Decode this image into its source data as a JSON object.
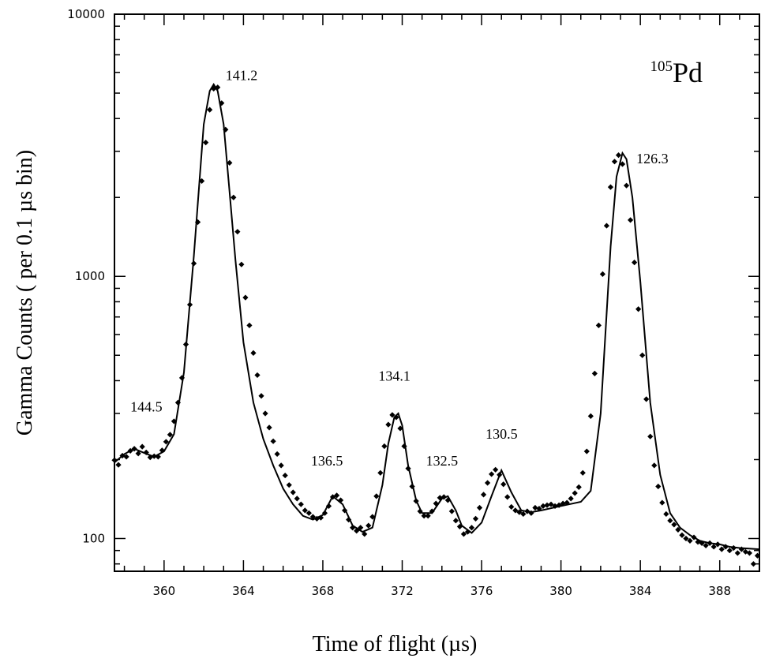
{
  "chart_data": {
    "type": "scatter",
    "title": "",
    "xlabel": "Time of flight (µs)",
    "ylabel": "Gamma Counts ( per 0.1 µs bin)",
    "xlim": [
      357.5,
      390
    ],
    "ylim": [
      75,
      10000
    ],
    "y_scale": "log",
    "grid": false,
    "x_ticks": [
      {
        "value": 360,
        "label": "360"
      },
      {
        "value": 364,
        "label": "364"
      },
      {
        "value": 368,
        "label": "368"
      },
      {
        "value": 372,
        "label": "372"
      },
      {
        "value": 376,
        "label": "376"
      },
      {
        "value": 380,
        "label": "380"
      },
      {
        "value": 384,
        "label": "384"
      },
      {
        "value": 388,
        "label": "388"
      }
    ],
    "y_ticks": [
      {
        "value": 100,
        "label": "100"
      },
      {
        "value": 1000,
        "label": "1000"
      },
      {
        "value": 10000,
        "label": "10000"
      }
    ],
    "isotope": {
      "mass": "105",
      "element": "Pd"
    },
    "annotations": [
      {
        "text": "144.5",
        "x": 358.3,
        "y": 305
      },
      {
        "text": "141.2",
        "x": 363.1,
        "y": 5600
      },
      {
        "text": "136.5",
        "x": 367.4,
        "y": 190
      },
      {
        "text": "134.1",
        "x": 370.8,
        "y": 400
      },
      {
        "text": "132.5",
        "x": 373.2,
        "y": 190
      },
      {
        "text": "130.5",
        "x": 376.2,
        "y": 240
      },
      {
        "text": "126.3",
        "x": 383.8,
        "y": 2700
      }
    ],
    "series": [
      {
        "style": "line",
        "color": "#000000",
        "x": [
          357.5,
          358.0,
          358.5,
          359.0,
          359.5,
          360.0,
          360.5,
          361.0,
          361.5,
          362.0,
          362.3,
          362.5,
          362.7,
          363.0,
          363.3,
          363.6,
          364.0,
          364.5,
          365.0,
          365.5,
          366.0,
          366.5,
          367.0,
          367.5,
          368.0,
          368.5,
          369.0,
          369.5,
          370.0,
          370.5,
          371.0,
          371.3,
          371.6,
          371.8,
          372.0,
          372.3,
          372.7,
          373.0,
          373.5,
          374.0,
          374.3,
          374.7,
          375.0,
          375.5,
          376.0,
          376.5,
          377.0,
          377.5,
          378.0,
          378.5,
          379.0,
          380.0,
          381.0,
          381.5,
          382.0,
          382.5,
          382.8,
          383.1,
          383.3,
          383.6,
          384.0,
          384.5,
          385.0,
          385.5,
          386.0,
          386.5,
          387.0,
          387.5,
          388.0,
          388.5,
          389.0,
          390.0
        ],
        "y": [
          195,
          210,
          220,
          212,
          205,
          215,
          250,
          430,
          1200,
          3800,
          5100,
          5400,
          5100,
          3800,
          2100,
          1150,
          560,
          330,
          240,
          190,
          155,
          135,
          122,
          118,
          123,
          145,
          135,
          112,
          106,
          110,
          160,
          230,
          290,
          300,
          270,
          190,
          140,
          125,
          125,
          142,
          145,
          128,
          112,
          105,
          115,
          145,
          182,
          150,
          128,
          126,
          128,
          133,
          138,
          152,
          300,
          1300,
          2400,
          2950,
          2800,
          2000,
          950,
          330,
          175,
          125,
          110,
          103,
          98,
          96,
          95,
          93,
          92,
          91
        ]
      },
      {
        "style": "points",
        "color": "#000000",
        "x": [
          357.5,
          357.7,
          357.9,
          358.1,
          358.3,
          358.5,
          358.7,
          358.9,
          359.1,
          359.3,
          359.5,
          359.7,
          359.9,
          360.1,
          360.3,
          360.5,
          360.7,
          360.9,
          361.1,
          361.3,
          361.5,
          361.7,
          361.9,
          362.1,
          362.3,
          362.5,
          362.7,
          362.9,
          363.1,
          363.3,
          363.5,
          363.7,
          363.9,
          364.1,
          364.3,
          364.5,
          364.7,
          364.9,
          365.1,
          365.3,
          365.5,
          365.7,
          365.9,
          366.1,
          366.3,
          366.5,
          366.7,
          366.9,
          367.1,
          367.3,
          367.5,
          367.7,
          367.9,
          368.1,
          368.3,
          368.5,
          368.7,
          368.9,
          369.1,
          369.3,
          369.5,
          369.7,
          369.9,
          370.1,
          370.3,
          370.5,
          370.7,
          370.9,
          371.1,
          371.3,
          371.5,
          371.7,
          371.9,
          372.1,
          372.3,
          372.5,
          372.7,
          372.9,
          373.1,
          373.3,
          373.5,
          373.7,
          373.9,
          374.1,
          374.3,
          374.5,
          374.7,
          374.9,
          375.1,
          375.3,
          375.5,
          375.7,
          375.9,
          376.1,
          376.3,
          376.5,
          376.7,
          376.9,
          377.1,
          377.3,
          377.5,
          377.7,
          377.9,
          378.1,
          378.3,
          378.5,
          378.7,
          378.9,
          379.1,
          379.3,
          379.5,
          379.7,
          379.9,
          380.1,
          380.3,
          380.5,
          380.7,
          380.9,
          381.1,
          381.3,
          381.5,
          381.7,
          381.9,
          382.1,
          382.3,
          382.5,
          382.7,
          382.9,
          383.1,
          383.3,
          383.5,
          383.7,
          383.9,
          384.1,
          384.3,
          384.5,
          384.7,
          384.9,
          385.1,
          385.3,
          385.5,
          385.7,
          385.9,
          386.1,
          386.3,
          386.5,
          386.7,
          386.9,
          387.1,
          387.3,
          387.5,
          387.7,
          387.9,
          388.1,
          388.3,
          388.5,
          388.7,
          388.9,
          389.1,
          389.3,
          389.5,
          389.7,
          389.9
        ],
        "y": [
          199,
          191,
          207,
          205,
          216,
          220,
          211,
          224,
          213,
          204,
          206,
          205,
          217,
          234,
          249,
          280,
          330,
          410,
          550,
          780,
          1120,
          1610,
          2310,
          3240,
          4320,
          5200,
          5260,
          4580,
          3630,
          2710,
          2000,
          1480,
          1110,
          830,
          650,
          510,
          420,
          350,
          300,
          265,
          235,
          210,
          190,
          174,
          160,
          150,
          142,
          135,
          128,
          125,
          121,
          119,
          120,
          125,
          133,
          144,
          146,
          140,
          128,
          118,
          110,
          107,
          110,
          104,
          112,
          121,
          145,
          178,
          225,
          272,
          296,
          290,
          263,
          225,
          185,
          158,
          139,
          127,
          122,
          122,
          127,
          136,
          143,
          144,
          140,
          127,
          117,
          111,
          104,
          106,
          110,
          119,
          131,
          147,
          163,
          176,
          183,
          175,
          161,
          144,
          132,
          128,
          126,
          124,
          127,
          125,
          131,
          130,
          133,
          134,
          135,
          133,
          134,
          136,
          137,
          142,
          149,
          157,
          178,
          215,
          293,
          426,
          650,
          1020,
          1560,
          2190,
          2740,
          2900,
          2680,
          2220,
          1640,
          1130,
          750,
          500,
          340,
          245,
          190,
          158,
          137,
          124,
          117,
          113,
          108,
          103,
          100,
          98,
          101,
          97,
          96,
          94,
          96,
          93,
          95,
          91,
          93,
          90,
          92,
          88,
          91,
          89,
          88,
          80,
          86
        ]
      }
    ]
  }
}
